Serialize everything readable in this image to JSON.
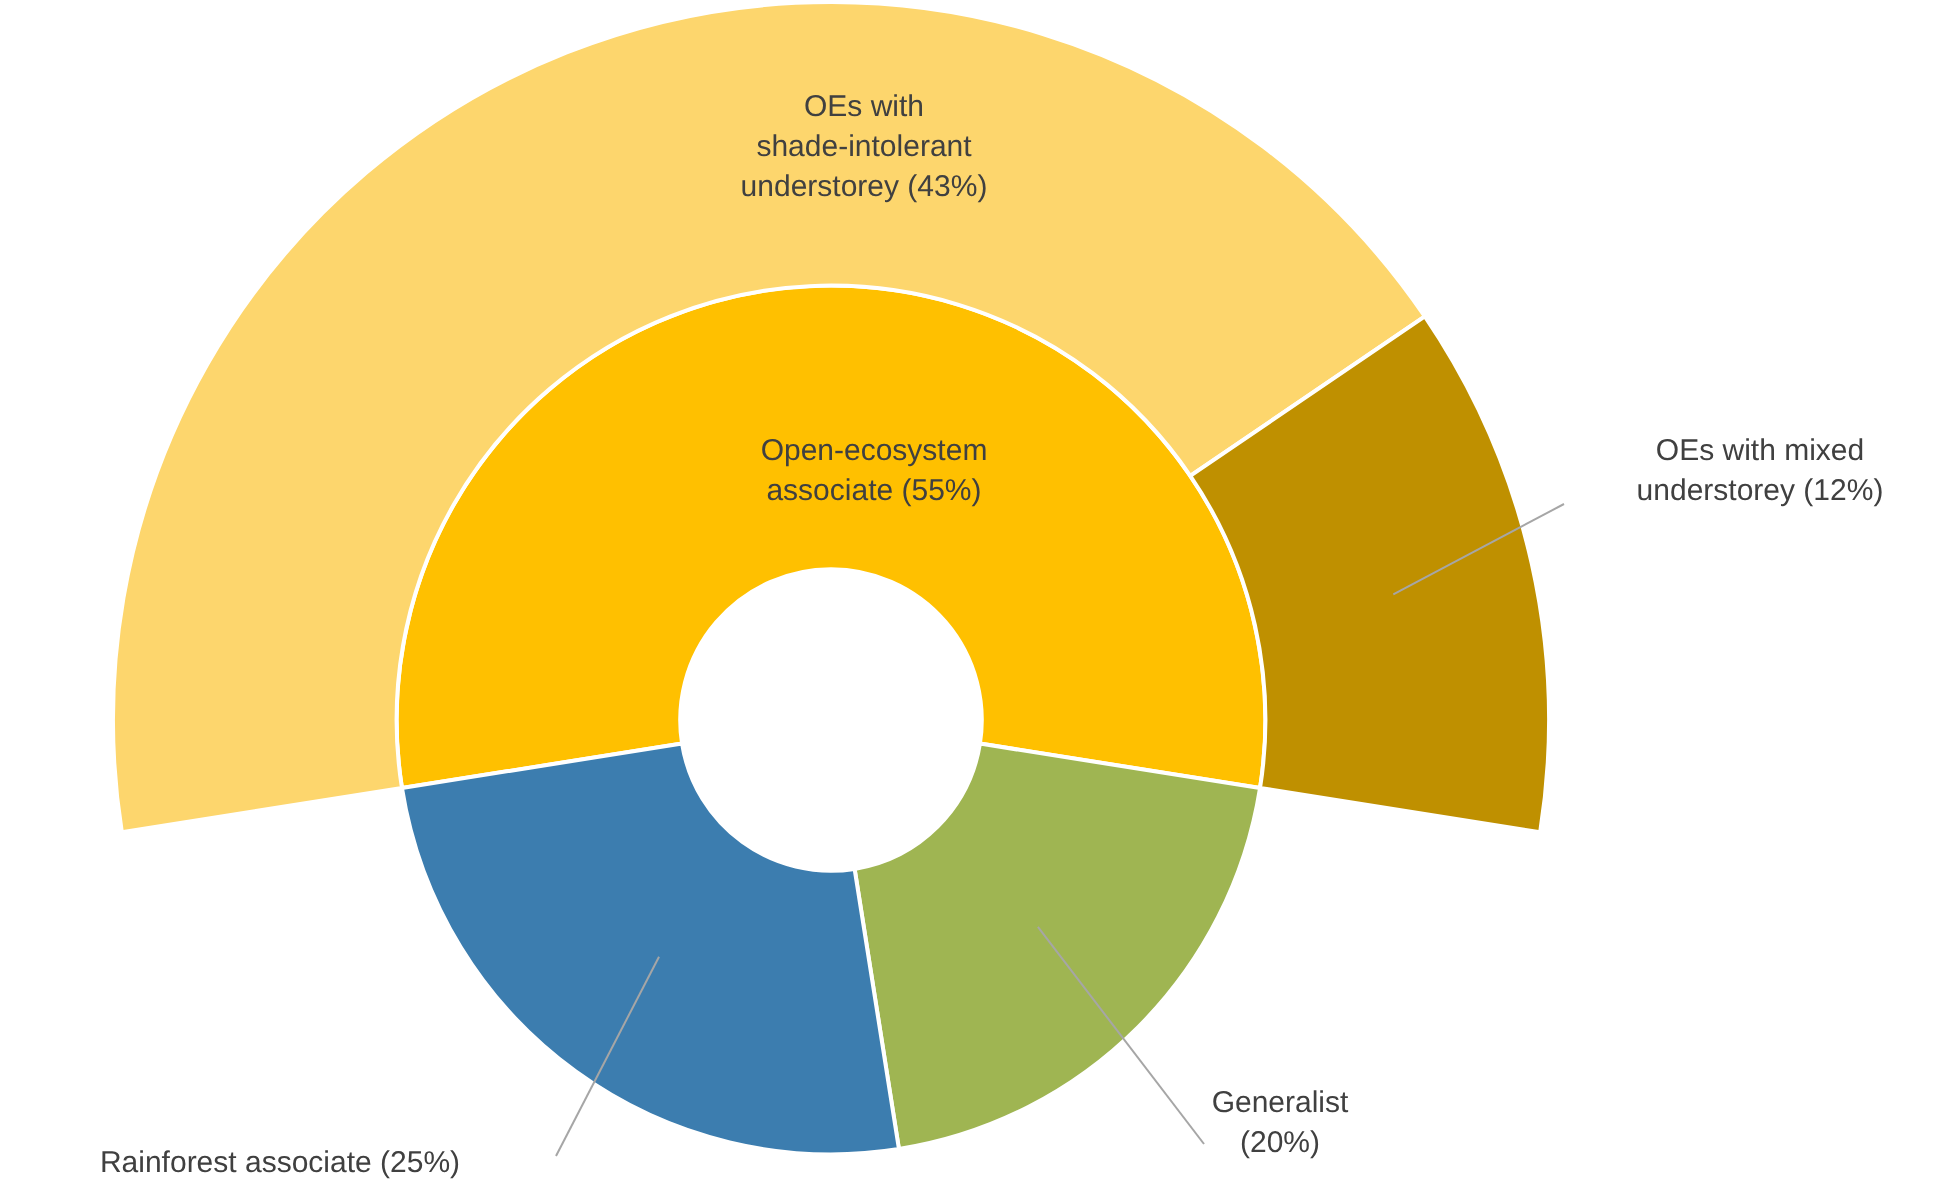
{
  "chart_data": {
    "type": "donut",
    "legend": false,
    "categories": [
      "Open-ecosystem associate",
      "Generalist",
      "Rainforest associate",
      "OEs with shade-intolerant understorey",
      "OEs with mixed understorey"
    ],
    "colors": [
      "#ffc000",
      "#9fb552",
      "#3c7daf",
      "#fdd66d",
      "#bf9000"
    ],
    "series": [
      {
        "values": [
          55,
          20,
          25,
          null,
          null
        ],
        "value_labels": [
          "(55%)",
          "(20%)",
          "(25%)",
          null,
          null
        ]
      },
      {
        "values": [
          null,
          null,
          null,
          43,
          12
        ],
        "value_labels": [
          null,
          null,
          null,
          "(43%)",
          "(12%)"
        ]
      }
    ]
  }
}
